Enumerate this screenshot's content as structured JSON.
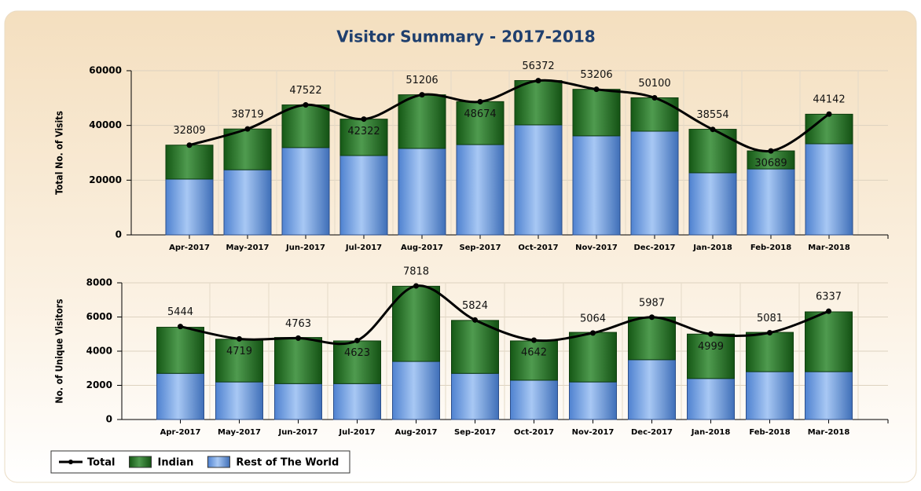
{
  "title": "Visitor Summary - 2017-2018",
  "chart_data": [
    {
      "type": "bar",
      "stacked": true,
      "ylabel": "Total No. of Visits",
      "categories": [
        "Apr-2017",
        "May-2017",
        "Jun-2017",
        "Jul-2017",
        "Aug-2017",
        "Sep-2017",
        "Oct-2017",
        "Nov-2017",
        "Dec-2017",
        "Jan-2018",
        "Feb-2018",
        "Mar-2018"
      ],
      "series": [
        {
          "name": "Total",
          "type": "line",
          "color": "#000000",
          "values": [
            32809,
            38719,
            47522,
            42322,
            51206,
            48674,
            56372,
            53206,
            50100,
            38554,
            30689,
            44142
          ]
        },
        {
          "name": "Indian",
          "color": "#237a23",
          "values": [
            12400,
            14900,
            15600,
            13300,
            19600,
            15700,
            16200,
            17000,
            12200,
            15900,
            6600,
            10800
          ]
        },
        {
          "name": "Rest of The World",
          "color": "#6ea4ee",
          "values": [
            20400,
            23800,
            31900,
            29000,
            31600,
            33000,
            40200,
            36200,
            37900,
            22700,
            24100,
            33300
          ]
        }
      ],
      "ylim": [
        0,
        60000
      ],
      "yticks": [
        0,
        20000,
        40000,
        60000
      ],
      "grid": true
    },
    {
      "type": "bar",
      "stacked": true,
      "ylabel": "No. of Unique Visitors",
      "categories": [
        "Apr-2017",
        "May-2017",
        "Jun-2017",
        "Jul-2017",
        "Aug-2017",
        "Sep-2017",
        "Oct-2017",
        "Nov-2017",
        "Dec-2017",
        "Jan-2018",
        "Feb-2018",
        "Mar-2018"
      ],
      "series": [
        {
          "name": "Total",
          "type": "line",
          "color": "#000000",
          "values": [
            5444,
            4719,
            4763,
            4623,
            7818,
            5824,
            4642,
            5064,
            5987,
            4999,
            5081,
            6337
          ]
        },
        {
          "name": "Indian",
          "color": "#237a23",
          "values": [
            2700,
            2500,
            2700,
            2500,
            4400,
            3100,
            2300,
            2900,
            2500,
            2600,
            2300,
            3500
          ]
        },
        {
          "name": "Rest of The World",
          "color": "#6ea4ee",
          "values": [
            2700,
            2200,
            2100,
            2100,
            3400,
            2700,
            2300,
            2200,
            3500,
            2400,
            2800,
            2800
          ]
        }
      ],
      "ylim": [
        0,
        8000
      ],
      "yticks": [
        0,
        2000,
        4000,
        6000,
        8000
      ],
      "grid": true
    }
  ]
}
